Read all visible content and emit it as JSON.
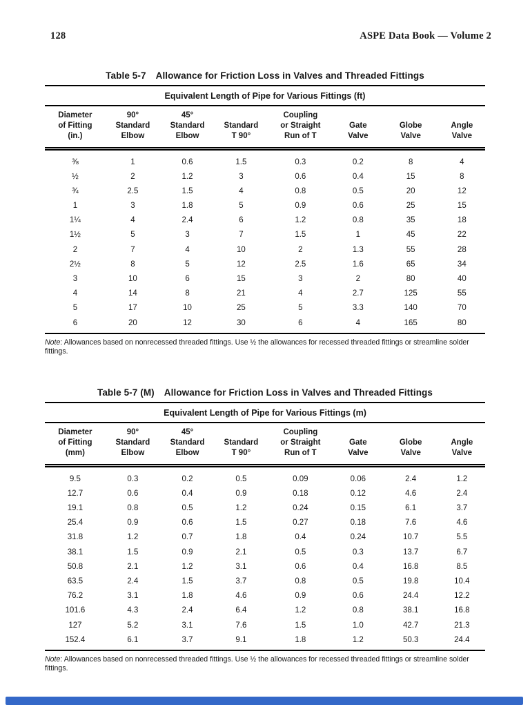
{
  "page_header": {
    "page_number": "128",
    "book_title": "ASPE Data Book — Volume 2"
  },
  "tables": {
    "ft": {
      "label": "Table 5-7",
      "title": "Allowance for Friction Loss in Valves and Threaded Fittings",
      "subtitle": "Equivalent Length of Pipe for Various Fittings (ft)",
      "columns": [
        "Diameter\nof Fitting\n(in.)",
        "90°\nStandard\nElbow",
        "45°\nStandard\nElbow",
        "Standard\nT 90°",
        "Coupling\nor Straight\nRun of T",
        "Gate\nValve",
        "Globe\nValve",
        "Angle\nValve"
      ],
      "rows": [
        [
          "⅜",
          "1",
          "0.6",
          "1.5",
          "0.3",
          "0.2",
          "8",
          "4"
        ],
        [
          "½",
          "2",
          "1.2",
          "3",
          "0.6",
          "0.4",
          "15",
          "8"
        ],
        [
          "¾",
          "2.5",
          "1.5",
          "4",
          "0.8",
          "0.5",
          "20",
          "12"
        ],
        [
          "1",
          "3",
          "1.8",
          "5",
          "0.9",
          "0.6",
          "25",
          "15"
        ],
        [
          "1¼",
          "4",
          "2.4",
          "6",
          "1.2",
          "0.8",
          "35",
          "18"
        ],
        [
          "1½",
          "5",
          "3",
          "7",
          "1.5",
          "1",
          "45",
          "22"
        ],
        [
          "2",
          "7",
          "4",
          "10",
          "2",
          "1.3",
          "55",
          "28"
        ],
        [
          "2½",
          "8",
          "5",
          "12",
          "2.5",
          "1.6",
          "65",
          "34"
        ],
        [
          "3",
          "10",
          "6",
          "15",
          "3",
          "2",
          "80",
          "40"
        ],
        [
          "4",
          "14",
          "8",
          "21",
          "4",
          "2.7",
          "125",
          "55"
        ],
        [
          "5",
          "17",
          "10",
          "25",
          "5",
          "3.3",
          "140",
          "70"
        ],
        [
          "6",
          "20",
          "12",
          "30",
          "6",
          "4",
          "165",
          "80"
        ]
      ],
      "note_label": "Note",
      "note_text": ": Allowances based on nonrecessed threaded fittings. Use ½  the allowances for recessed threaded fittings or streamline solder fittings."
    },
    "m": {
      "label": "Table 5-7 (M)",
      "title": "Allowance for Friction Loss in Valves and Threaded Fittings",
      "subtitle": "Equivalent Length of Pipe for Various Fittings (m)",
      "columns": [
        "Diameter\nof Fitting\n(mm)",
        "90°\nStandard\nElbow",
        "45°\nStandard\nElbow",
        "Standard\nT 90°",
        "Coupling\nor Straight\nRun of T",
        "Gate\nValve",
        "Globe\nValve",
        "Angle\nValve"
      ],
      "rows": [
        [
          "9.5",
          "0.3",
          "0.2",
          "0.5",
          "0.09",
          "0.06",
          "2.4",
          "1.2"
        ],
        [
          "12.7",
          "0.6",
          "0.4",
          "0.9",
          "0.18",
          "0.12",
          "4.6",
          "2.4"
        ],
        [
          "19.1",
          "0.8",
          "0.5",
          "1.2",
          "0.24",
          "0.15",
          "6.1",
          "3.7"
        ],
        [
          "25.4",
          "0.9",
          "0.6",
          "1.5",
          "0.27",
          "0.18",
          "7.6",
          "4.6"
        ],
        [
          "31.8",
          "1.2",
          "0.7",
          "1.8",
          "0.4",
          "0.24",
          "10.7",
          "5.5"
        ],
        [
          "38.1",
          "1.5",
          "0.9",
          "2.1",
          "0.5",
          "0.3",
          "13.7",
          "6.7"
        ],
        [
          "50.8",
          "2.1",
          "1.2",
          "3.1",
          "0.6",
          "0.4",
          "16.8",
          "8.5"
        ],
        [
          "63.5",
          "2.4",
          "1.5",
          "3.7",
          "0.8",
          "0.5",
          "19.8",
          "10.4"
        ],
        [
          "76.2",
          "3.1",
          "1.8",
          "4.6",
          "0.9",
          "0.6",
          "24.4",
          "12.2"
        ],
        [
          "101.6",
          "4.3",
          "2.4",
          "6.4",
          "1.2",
          "0.8",
          "38.1",
          "16.8"
        ],
        [
          "127",
          "5.2",
          "3.1",
          "7.6",
          "1.5",
          "1.0",
          "42.7",
          "21.3"
        ],
        [
          "152.4",
          "6.1",
          "3.7",
          "9.1",
          "1.8",
          "1.2",
          "50.3",
          "24.4"
        ]
      ],
      "note_label": "Note",
      "note_text": ": Allowances based on nonrecessed threaded fittings. Use ½  the allowances for recessed threaded fittings or streamline solder fittings."
    }
  },
  "viewer": {
    "scrollbar_color": "#3468c8"
  }
}
